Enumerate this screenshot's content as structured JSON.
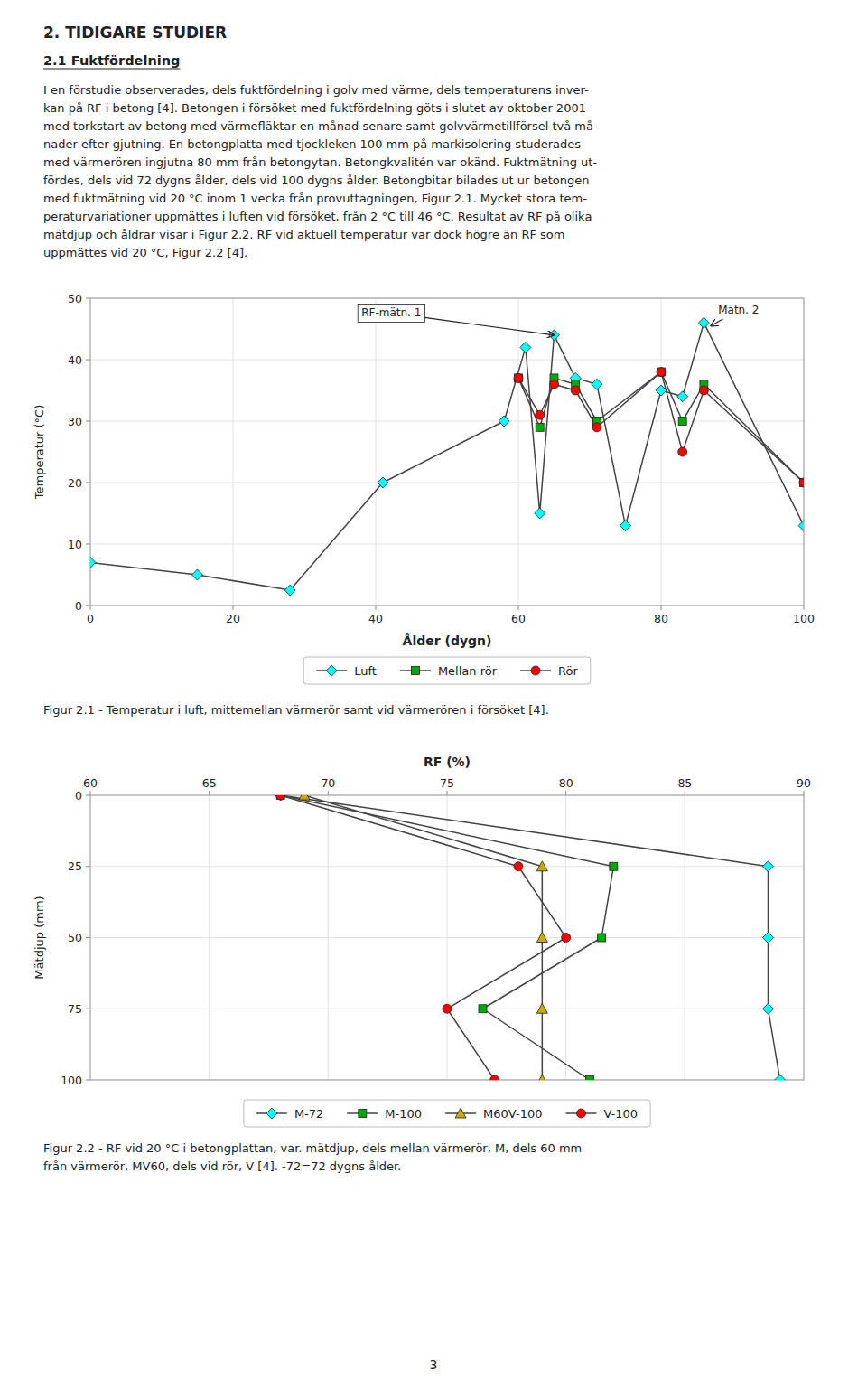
{
  "page_title": "2. TIDIGARE STUDIER",
  "section_title": "2.1 Fuktfördelning",
  "body_lines": [
    "I en förstudie observerades, dels fuktfördelning i golv med värme, dels temperaturens inver-",
    "kan på RF i betong [4]. Betongen i försöket med fuktfördelning göts i slutet av oktober 2001",
    "med torkstart av betong med värmefläktar en månad senare samt golvvärmetillförsel två må-",
    "nader efter gjutning. En betongplatta med tjockleken 100 mm på markisolering studerades",
    "med värmerören ingjutna 80 mm från betongytan. Betongkvalitén var okänd. Fuktmätning ut-",
    "fördes, dels vid 72 dygns ålder, dels vid 100 dygns ålder. Betongbitar bilades ut ur betongen",
    "med fuktmätning vid 20 °C inom 1 vecka från provuttagningen, Figur 2.1. Mycket stora tem-",
    "peraturvariationer uppmättes i luften vid försöket, från 2 °C till 46 °C. Resultat av RF på olika",
    "mätdjup och åldrar visar i Figur 2.2. RF vid aktuell temperatur var dock högre än RF som",
    "uppmättes vid 20 °C, Figur 2.2 [4]."
  ],
  "page_number": "3",
  "chart_data": [
    {
      "type": "line",
      "x_label": "Ålder (dygn)",
      "y_label": "Temperatur (°C)",
      "xlim": [
        0,
        100
      ],
      "xticks": [
        0,
        20,
        40,
        60,
        80,
        100
      ],
      "ylim": [
        0,
        50
      ],
      "yticks": [
        0,
        10,
        20,
        30,
        40,
        50
      ],
      "grid": true,
      "legend": "bottom",
      "series": [
        {
          "name": "Luft",
          "color": "cyan",
          "marker": "diamond",
          "x": [
            0,
            15,
            28,
            41,
            58,
            61,
            63,
            65,
            68,
            71,
            75,
            80,
            83,
            86,
            100
          ],
          "values": [
            7,
            5,
            2.5,
            20,
            30,
            42,
            15,
            44,
            37,
            36,
            13,
            35,
            34,
            46,
            13
          ]
        },
        {
          "name": "Mellan rör",
          "color": "#00aa00",
          "marker": "square",
          "x": [
            60,
            63,
            65,
            68,
            71,
            80,
            83,
            86,
            100
          ],
          "values": [
            37,
            29,
            37,
            36,
            30,
            38,
            30,
            36,
            20
          ]
        },
        {
          "name": "Rör",
          "color": "red",
          "marker": "circle",
          "x": [
            60,
            63,
            65,
            68,
            71,
            80,
            83,
            86,
            100
          ],
          "values": [
            37,
            31,
            36,
            35,
            29,
            38,
            25,
            35,
            20
          ]
        }
      ],
      "annotations": [
        {
          "text": "RF-mätn. 1",
          "x": 65,
          "y": 44,
          "text_x": 38,
          "text_y": 47,
          "boxed": true
        },
        {
          "text": "Mätn. 2",
          "x": 87,
          "y": 45.5,
          "text_x": 88,
          "text_y": 47.5,
          "boxed": false
        }
      ],
      "caption": [
        "Figur 2.1 - Temperatur i luft, mittemellan värmerör samt vid värmerören i försöket [4]."
      ]
    },
    {
      "type": "line",
      "x_label": "RF (%)",
      "y_label": "Mätdjup (mm)",
      "xlim": [
        60,
        90
      ],
      "xticks": [
        60,
        65,
        70,
        75,
        80,
        85,
        90
      ],
      "ylim": [
        100,
        0
      ],
      "yticks": [
        0,
        25,
        50,
        75,
        100
      ],
      "grid": true,
      "legend": "bottom",
      "series": [
        {
          "name": "M-72",
          "color": "cyan",
          "marker": "diamond",
          "x": [
            68.0,
            88.5,
            88.5,
            88.5,
            89.0
          ],
          "values": [
            0,
            25,
            50,
            75,
            100
          ]
        },
        {
          "name": "M-100",
          "color": "#00aa00",
          "marker": "square",
          "x": [
            68.0,
            82.0,
            81.5,
            76.5,
            81.0
          ],
          "values": [
            0,
            25,
            50,
            75,
            100
          ]
        },
        {
          "name": "M60V-100",
          "color": "#ccaa00",
          "marker": "triangle",
          "x": [
            69.0,
            79.0,
            79.0,
            79.0,
            79.0
          ],
          "values": [
            0,
            25,
            50,
            75,
            100
          ]
        },
        {
          "name": "V-100",
          "color": "red",
          "marker": "circle",
          "x": [
            68.0,
            78.0,
            80.0,
            75.0,
            77.0
          ],
          "values": [
            0,
            25,
            50,
            75,
            100
          ]
        }
      ],
      "caption": [
        "Figur 2.2 - RF vid 20 °C i betongplattan, var. mätdjup, dels mellan värmerör, M, dels 60 mm",
        "från värmerör, MV60, dels vid rör, V [4]. -72=72 dygns ålder."
      ]
    }
  ]
}
